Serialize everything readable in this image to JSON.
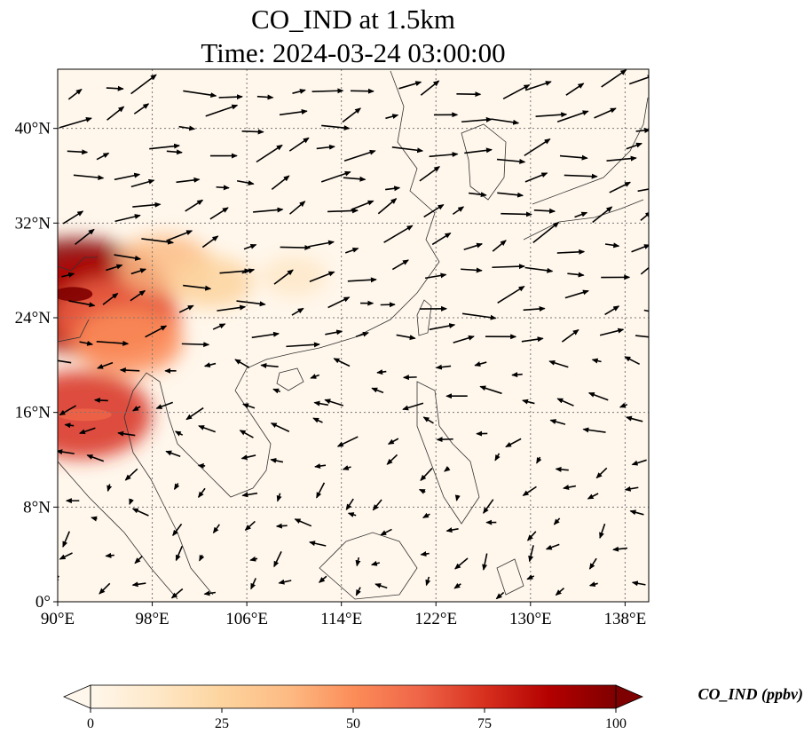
{
  "title": {
    "line1": "CO_IND at 1.5km",
    "line2": "Time: 2024-03-24 03:00:00"
  },
  "map": {
    "lon_range": [
      90,
      140
    ],
    "lat_range": [
      0,
      45
    ],
    "lon_ticks": [
      {
        "value": 90,
        "label": "90°E"
      },
      {
        "value": 98,
        "label": "98°E"
      },
      {
        "value": 106,
        "label": "106°E"
      },
      {
        "value": 114,
        "label": "114°E"
      },
      {
        "value": 122,
        "label": "122°E"
      },
      {
        "value": 130,
        "label": "130°E"
      },
      {
        "value": 138,
        "label": "138°E"
      }
    ],
    "lat_ticks": [
      {
        "value": 0,
        "label": "0°"
      },
      {
        "value": 8,
        "label": "8°N"
      },
      {
        "value": 16,
        "label": "16°N"
      },
      {
        "value": 24,
        "label": "24°N"
      },
      {
        "value": 32,
        "label": "32°N"
      },
      {
        "value": 40,
        "label": "40°N"
      }
    ],
    "gridlines": true,
    "field": "CO_IND",
    "height": "1.5km",
    "time": "2024-03-24 03:00:00",
    "concentration_hotspots": [
      {
        "lon": 91.5,
        "lat": 26.0,
        "value": 100
      },
      {
        "lon": 93.0,
        "lat": 25.0,
        "value": 85
      },
      {
        "lon": 95.0,
        "lat": 24.0,
        "value": 60
      },
      {
        "lon": 92.0,
        "lat": 15.8,
        "value": 70
      },
      {
        "lon": 96.0,
        "lat": 22.0,
        "value": 45
      },
      {
        "lon": 99.0,
        "lat": 28.5,
        "value": 35
      },
      {
        "lon": 103.0,
        "lat": 27.0,
        "value": 25
      },
      {
        "lon": 110.0,
        "lat": 27.5,
        "value": 12
      }
    ]
  },
  "colorbar": {
    "min": 0,
    "max": 100,
    "extend": "both",
    "ticks": [
      {
        "value": 0,
        "label": "0"
      },
      {
        "value": 25,
        "label": "25"
      },
      {
        "value": 50,
        "label": "50"
      },
      {
        "value": 75,
        "label": "75"
      },
      {
        "value": 100,
        "label": "100"
      }
    ],
    "label": "CO_IND (ppbv)",
    "colormap": "OrRd",
    "stops": [
      "#fff7ec",
      "#fee8c8",
      "#fdd49e",
      "#fdbb84",
      "#fc8d59",
      "#ef6548",
      "#d7301f",
      "#b30000",
      "#7f0000"
    ]
  }
}
